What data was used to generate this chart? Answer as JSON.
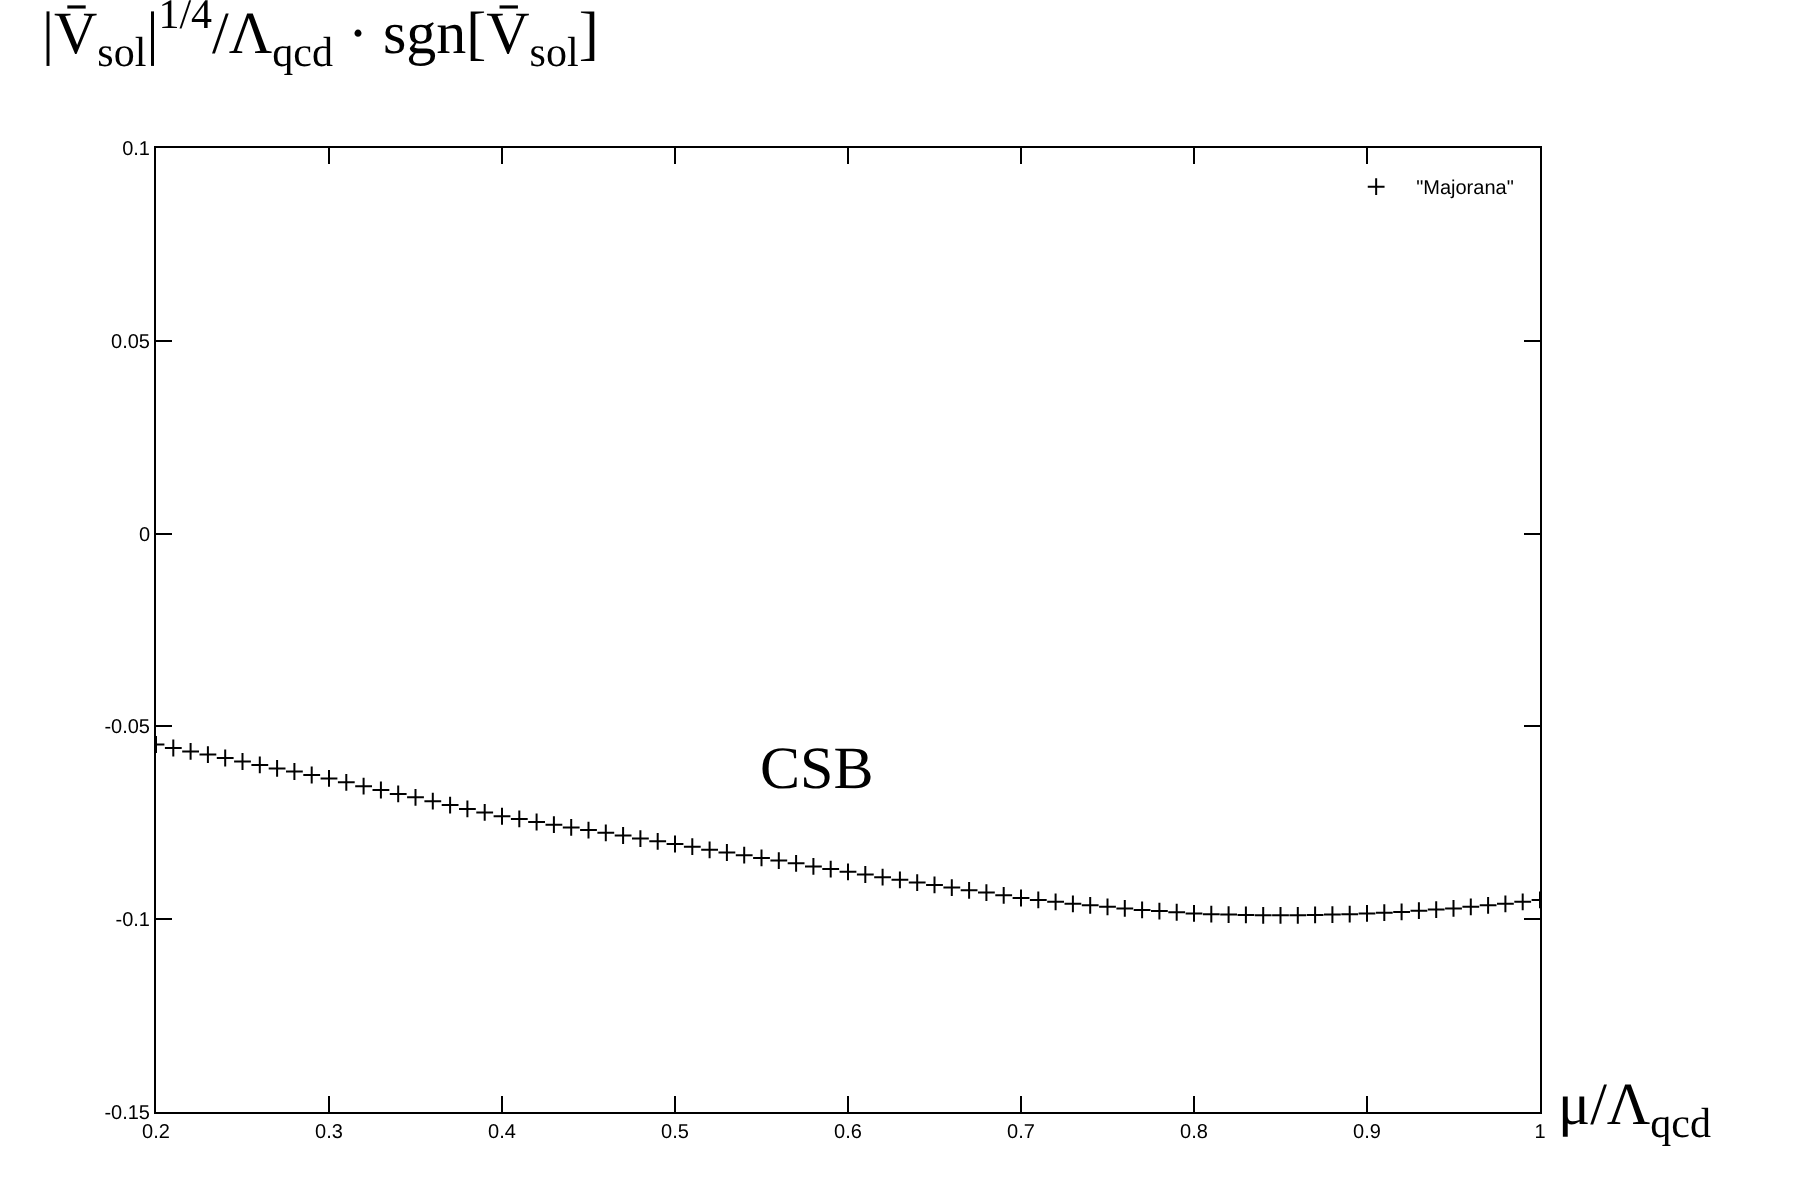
{
  "chart_data": {
    "type": "scatter",
    "ylabel": "|V̄$_{sol}$|$^{1/4}$/Λ$_{qcd}$ · sgn[V̄$_{sol}$]",
    "xlabel": "μ/Λ$_{qcd}$",
    "annotations": [
      "CSB"
    ],
    "x": [
      0.2,
      0.21,
      0.22,
      0.23,
      0.24,
      0.25,
      0.26,
      0.27,
      0.28,
      0.29,
      0.3,
      0.31,
      0.32,
      0.33,
      0.34,
      0.35,
      0.36,
      0.37,
      0.38,
      0.39,
      0.4,
      0.41,
      0.42,
      0.43,
      0.44,
      0.45,
      0.46,
      0.47,
      0.48,
      0.49,
      0.5,
      0.51,
      0.52,
      0.53,
      0.54,
      0.55,
      0.56,
      0.57,
      0.58,
      0.59,
      0.6,
      0.61,
      0.62,
      0.63,
      0.64,
      0.65,
      0.66,
      0.67,
      0.68,
      0.69,
      0.7,
      0.71,
      0.72,
      0.73,
      0.74,
      0.75,
      0.76,
      0.77,
      0.78,
      0.79,
      0.8,
      0.81,
      0.82,
      0.83,
      0.84,
      0.85,
      0.86,
      0.87,
      0.88,
      0.89,
      0.9,
      0.91,
      0.92,
      0.93,
      0.94,
      0.95,
      0.96,
      0.97,
      0.98,
      0.99,
      1.0
    ],
    "series": [
      {
        "name": "\"Majorana\"",
        "color": "#000000",
        "values": [
          -0.0547,
          -0.0556,
          -0.0565,
          -0.0573,
          -0.0582,
          -0.0591,
          -0.06,
          -0.0609,
          -0.0617,
          -0.0626,
          -0.0635,
          -0.0645,
          -0.0655,
          -0.0665,
          -0.0675,
          -0.0684,
          -0.0694,
          -0.0704,
          -0.0714,
          -0.0723,
          -0.0733,
          -0.074,
          -0.0748,
          -0.0755,
          -0.0762,
          -0.0769,
          -0.0776,
          -0.0783,
          -0.0791,
          -0.0798,
          -0.0805,
          -0.0812,
          -0.082,
          -0.0827,
          -0.0834,
          -0.0841,
          -0.0848,
          -0.0855,
          -0.0863,
          -0.087,
          -0.0877,
          -0.0884,
          -0.0891,
          -0.0898,
          -0.0905,
          -0.0911,
          -0.0918,
          -0.0925,
          -0.0931,
          -0.0938,
          -0.0945,
          -0.095,
          -0.0955,
          -0.096,
          -0.0964,
          -0.0968,
          -0.0972,
          -0.0976,
          -0.0979,
          -0.0982,
          -0.0985,
          -0.0987,
          -0.0988,
          -0.0989,
          -0.099,
          -0.099,
          -0.099,
          -0.0989,
          -0.0988,
          -0.0987,
          -0.0985,
          -0.0983,
          -0.0981,
          -0.0978,
          -0.0975,
          -0.0972,
          -0.0968,
          -0.0964,
          -0.096,
          -0.0955,
          -0.095
        ]
      }
    ],
    "xlim": [
      0.2,
      1.0
    ],
    "xticks": [
      0.2,
      0.3,
      0.4,
      0.5,
      0.6,
      0.7,
      0.8,
      0.9,
      {
        "value": 1.0,
        "label": "1"
      }
    ],
    "ylim": [
      -0.15,
      0.1
    ],
    "yticks": [
      -0.15,
      -0.1,
      -0.05,
      {
        "value": 0,
        "label": "0"
      },
      0.05,
      0.1
    ],
    "grid": false,
    "legend": "top right",
    "marker": "cross"
  }
}
